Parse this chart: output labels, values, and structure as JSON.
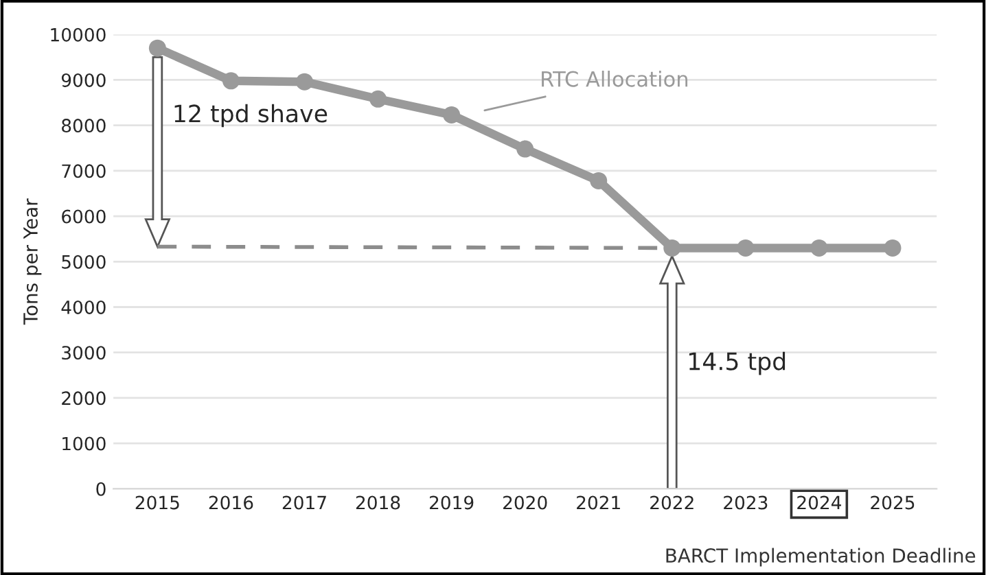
{
  "chart_data": {
    "type": "line",
    "ylabel": "Tons per Year",
    "x": [
      2015,
      2016,
      2017,
      2018,
      2019,
      2020,
      2021,
      2022,
      2023,
      2024,
      2025
    ],
    "series": [
      {
        "name": "RTC Allocation",
        "color": "#9a9a9a",
        "values": [
          9700,
          8980,
          8960,
          8580,
          8230,
          7480,
          6780,
          5300,
          5300,
          5300,
          5300
        ],
        "marker": "circle",
        "line_style": "solid"
      },
      {
        "x": [
          2015,
          2022
        ],
        "color": "#8c8c8c",
        "values": [
          5330,
          5300
        ],
        "marker": "none",
        "line_style": "dashed"
      }
    ],
    "xlim": [
      2014.4,
      2025.6
    ],
    "xticks": [
      2015,
      2016,
      2017,
      2018,
      2019,
      2020,
      2021,
      2022,
      2023,
      2024,
      2025
    ],
    "ylim": [
      0,
      10000
    ],
    "yticks": [
      0,
      1000,
      2000,
      3000,
      4000,
      5000,
      6000,
      7000,
      8000,
      9000,
      10000
    ],
    "grid": "y",
    "legend": false,
    "annotations": [
      "12 tpd shave",
      "14.5 tpd",
      "BARCT Implementation Deadline"
    ]
  }
}
